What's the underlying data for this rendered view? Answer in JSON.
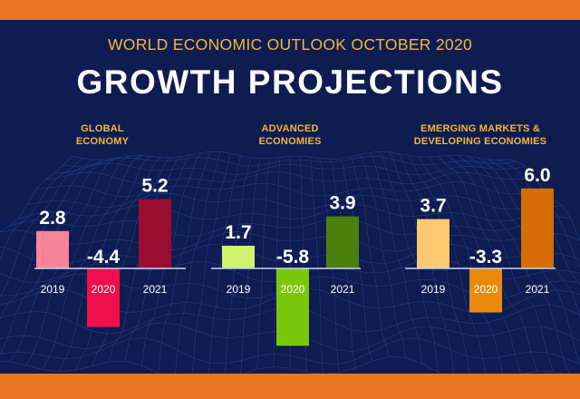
{
  "header": {
    "supertitle": "WORLD ECONOMIC OUTLOOK OCTOBER 2020",
    "title": "GROWTH PROJECTIONS"
  },
  "colors": {
    "panel_bg": "#0e1c52",
    "frame_orange": "#e87722",
    "heading_gold": "#f7b733",
    "label_white": "#ffffff"
  },
  "chart_data": [
    {
      "type": "bar",
      "title_lines": [
        "GLOBAL",
        "ECONOMY"
      ],
      "categories": [
        "2019",
        "2020",
        "2021"
      ],
      "values": [
        2.8,
        -4.4,
        5.2
      ],
      "value_labels": [
        "2.8",
        "-4.4",
        "5.2"
      ],
      "colors": [
        "#f9849a",
        "#ef0f4a",
        "#9b0c30"
      ],
      "ylim": [
        -6,
        6
      ]
    },
    {
      "type": "bar",
      "title_lines": [
        "ADVANCED",
        "ECONOMIES"
      ],
      "categories": [
        "2019",
        "2020",
        "2021"
      ],
      "values": [
        1.7,
        -5.8,
        3.9
      ],
      "value_labels": [
        "1.7",
        "-5.8",
        "3.9"
      ],
      "colors": [
        "#d2f26e",
        "#7ac70c",
        "#4d7f0f"
      ],
      "ylim": [
        -6,
        6
      ]
    },
    {
      "type": "bar",
      "title_lines": [
        "EMERGING MARKETS &",
        "DEVELOPING ECONOMIES"
      ],
      "categories": [
        "2019",
        "2020",
        "2021"
      ],
      "values": [
        3.7,
        -3.3,
        6.0
      ],
      "value_labels": [
        "3.7",
        "-3.3",
        "6.0"
      ],
      "colors": [
        "#fdc96e",
        "#e98a0c",
        "#d56c06"
      ],
      "ylim": [
        -6,
        6
      ]
    }
  ]
}
